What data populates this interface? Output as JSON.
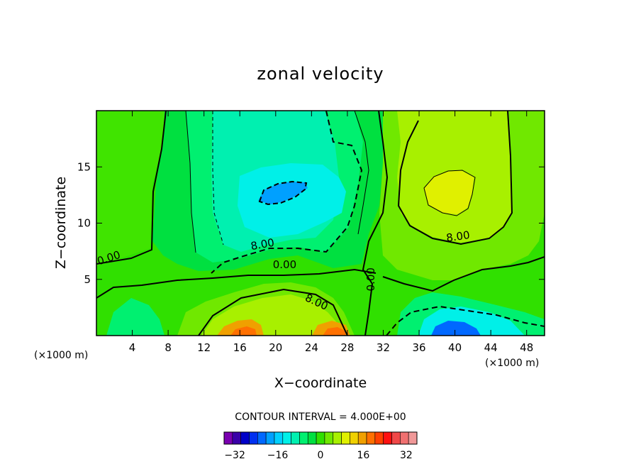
{
  "chart_data": {
    "type": "contour",
    "title": "zonal velocity",
    "xlabel": "X−coordinate",
    "ylabel": "Z−coordinate",
    "x_unit": "(×1000 m)",
    "y_unit": "(×1000 m)",
    "xlim": [
      0,
      50
    ],
    "ylim": [
      0,
      20
    ],
    "x_ticks": [
      4,
      8,
      12,
      16,
      20,
      24,
      28,
      32,
      36,
      40,
      44,
      48
    ],
    "y_ticks": [
      5,
      10,
      15
    ],
    "contour_interval_text": "CONTOUR INTERVAL =  4.000E+00",
    "contour_labels": [
      {
        "text": "0.00",
        "x": 1.5,
        "y": 6.6
      },
      {
        "text": "8.00",
        "x": 18.6,
        "y": 7.8
      },
      {
        "text": "0.00",
        "x": 21.0,
        "y": 6.0
      },
      {
        "text": "8.00",
        "x": 24.4,
        "y": 2.7
      },
      {
        "text": "0.00",
        "x": 31.0,
        "y": 5.0
      },
      {
        "text": "8.00",
        "x": 40.4,
        "y": 8.5
      }
    ],
    "field_features": [
      {
        "desc": "negative core",
        "x": 20.6,
        "y": 12.6,
        "value": -16
      },
      {
        "desc": "positive core",
        "x": 39.0,
        "y": 13.0,
        "value": 12
      },
      {
        "desc": "positive surface jet",
        "x": 16.5,
        "y": 0.3,
        "value": 24
      },
      {
        "desc": "positive surface jet",
        "x": 26.5,
        "y": 0.3,
        "value": 24
      },
      {
        "desc": "negative surface core",
        "x": 40.2,
        "y": 0.3,
        "value": -16
      }
    ],
    "colorbar": {
      "levels_min": -36,
      "levels_max": 36,
      "interval": 4,
      "tick_labels": [
        "−32",
        "−16",
        "0",
        "16",
        "32"
      ],
      "colors": [
        "#7a00b0",
        "#3a00a8",
        "#0000c8",
        "#0030f0",
        "#0068ff",
        "#00a0ff",
        "#00d0ff",
        "#00f0e8",
        "#00f0b0",
        "#00f070",
        "#00e040",
        "#30e000",
        "#70e800",
        "#a8f000",
        "#e0f000",
        "#f0d000",
        "#f0a000",
        "#ff7000",
        "#ff4000",
        "#ff1010",
        "#f04848",
        "#f07070",
        "#f09898"
      ]
    },
    "grid": false
  }
}
